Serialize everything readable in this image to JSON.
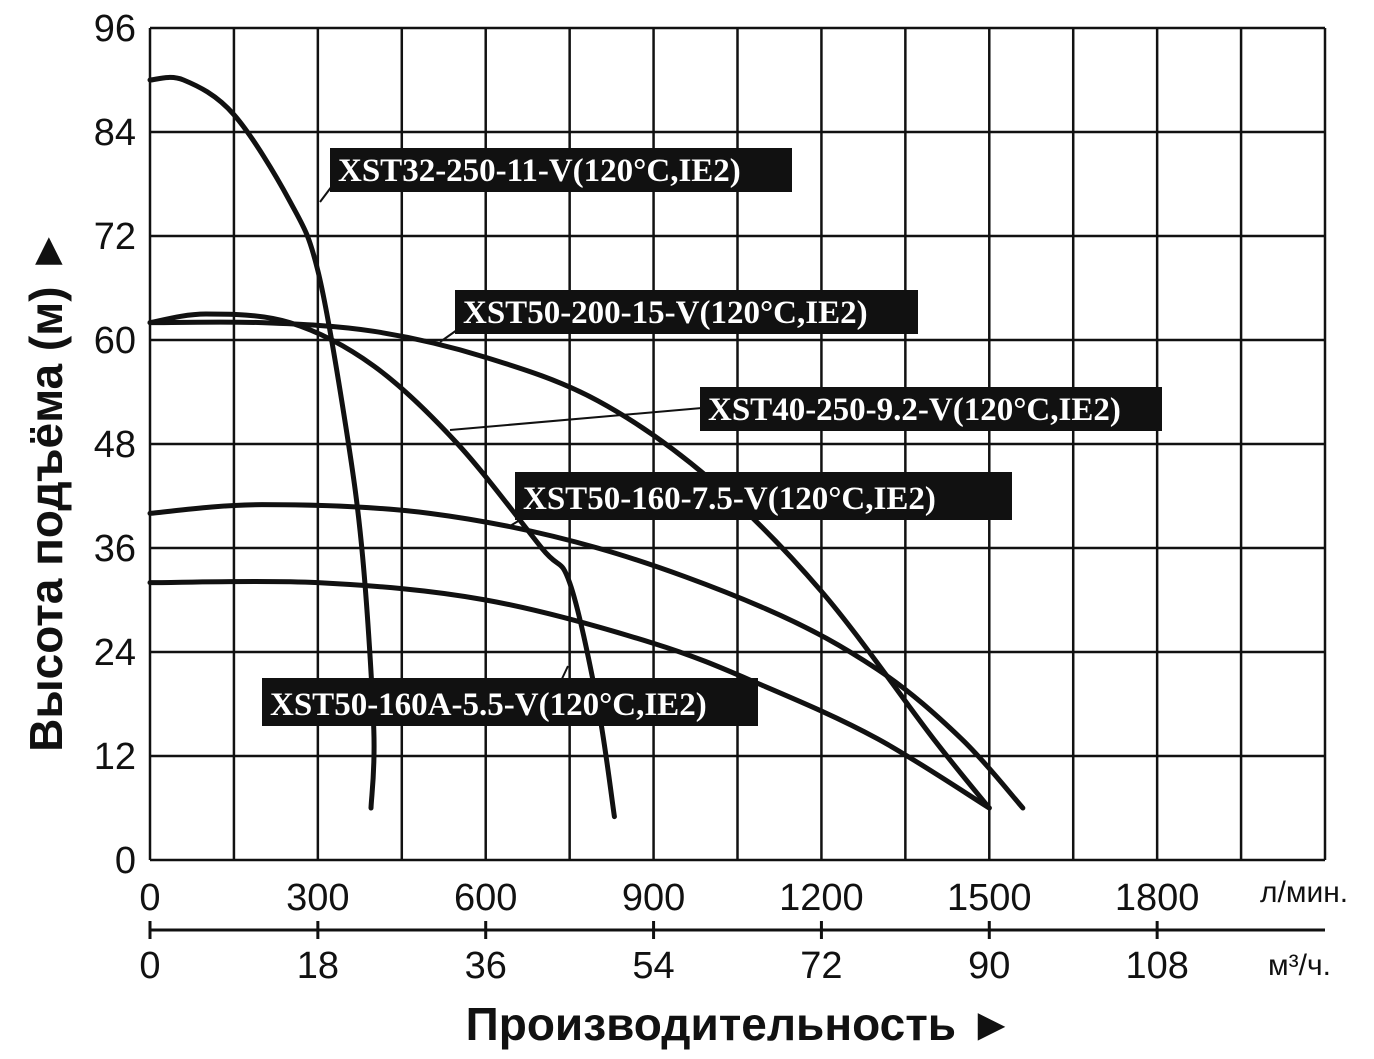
{
  "chart_data": {
    "type": "line",
    "title": "",
    "ylabel": "Высота подъёма (м) ►",
    "xlabel": "Производительность ►",
    "x_unit_primary": "л/мин.",
    "x_unit_secondary": "м³/ч.",
    "grid": true,
    "xlim": [
      0,
      2100
    ],
    "ylim": [
      0,
      96
    ],
    "x_ticks": [
      "0",
      "300",
      "600",
      "900",
      "1200",
      "1500",
      "1800"
    ],
    "x_ticks_secondary": [
      "0",
      "18",
      "36",
      "54",
      "72",
      "90",
      "108"
    ],
    "y_ticks": [
      "0",
      "12",
      "24",
      "36",
      "48",
      "60",
      "72",
      "84",
      "96"
    ],
    "series": [
      {
        "name": "XST32-250-11-V(120°C,IE2)",
        "points": [
          [
            0,
            90
          ],
          [
            60,
            90
          ],
          [
            150,
            86
          ],
          [
            250,
            76
          ],
          [
            300,
            68
          ],
          [
            350,
            50
          ],
          [
            380,
            35
          ],
          [
            400,
            15
          ],
          [
            395,
            6
          ]
        ]
      },
      {
        "name": "XST50-200-15-V(120°C,IE2)",
        "points": [
          [
            0,
            62
          ],
          [
            200,
            62
          ],
          [
            400,
            61
          ],
          [
            600,
            58
          ],
          [
            800,
            53
          ],
          [
            1000,
            44
          ],
          [
            1200,
            31
          ],
          [
            1400,
            14
          ],
          [
            1500,
            6
          ]
        ]
      },
      {
        "name": "XST40-250-9.2-V(120°C,IE2)",
        "points": [
          [
            0,
            62
          ],
          [
            100,
            63
          ],
          [
            250,
            62
          ],
          [
            400,
            57
          ],
          [
            550,
            48
          ],
          [
            700,
            36
          ],
          [
            750,
            32
          ],
          [
            800,
            18
          ],
          [
            830,
            5
          ]
        ]
      },
      {
        "name": "XST50-160-7.5-V(120°C,IE2)",
        "points": [
          [
            0,
            40
          ],
          [
            200,
            41
          ],
          [
            500,
            40
          ],
          [
            800,
            36
          ],
          [
            1100,
            29
          ],
          [
            1300,
            22
          ],
          [
            1450,
            14
          ],
          [
            1560,
            6
          ]
        ]
      },
      {
        "name": "XST50-160A-5.5-V(120°C,IE2)",
        "points": [
          [
            0,
            32
          ],
          [
            300,
            32
          ],
          [
            600,
            30
          ],
          [
            900,
            25
          ],
          [
            1100,
            20
          ],
          [
            1300,
            14
          ],
          [
            1500,
            6
          ]
        ]
      }
    ]
  }
}
